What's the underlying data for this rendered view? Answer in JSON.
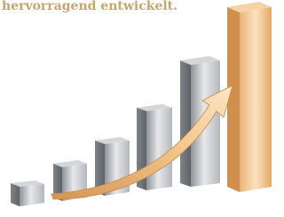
{
  "header": {
    "text": "hervorragend entwickelt."
  }
}
